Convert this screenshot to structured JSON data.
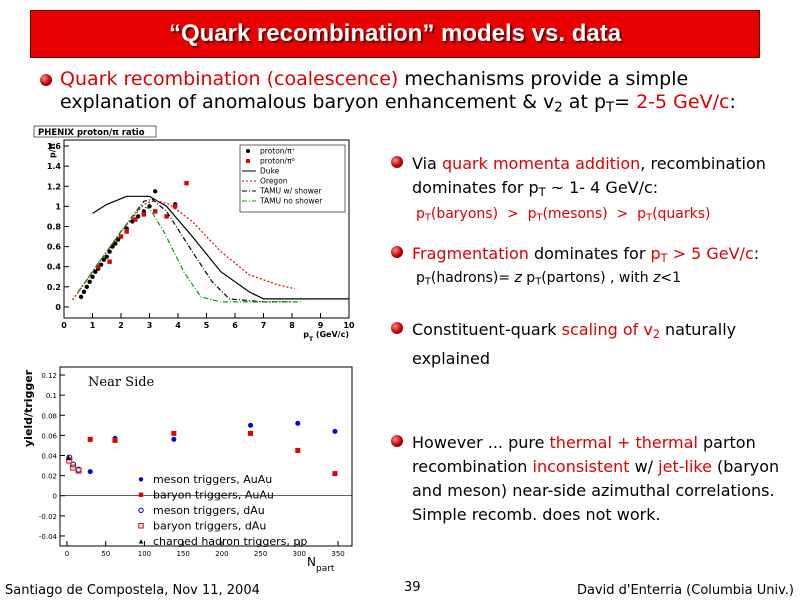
{
  "title": "“Quark recombination” models vs. data",
  "intro": [
    {
      "text": "Quark recombination (coalescence)",
      "color": "#e00000"
    },
    {
      "text": " mechanisms provide a simple explanation of anomalous baryon enhancement & v"
    },
    {
      "text": "2",
      "sub": true
    },
    {
      "text": " at p"
    },
    {
      "text": "T",
      "sub": true
    },
    {
      "text": "= "
    },
    {
      "text": "2-5 GeV/c",
      "color": "#e00000"
    },
    {
      "text": ":"
    }
  ],
  "bullets": [
    {
      "text": [
        {
          "text": "Via "
        },
        {
          "text": "quark momenta addition",
          "color": "#e00000"
        },
        {
          "text": ", recombination dominates for p"
        },
        {
          "text": "T",
          "sub": true
        },
        {
          "text": " ~ 1- 4 GeV/c:"
        }
      ],
      "detail": [
        {
          "text": "p",
          "color": "#e00000"
        },
        {
          "text": "T",
          "sub": true,
          "color": "#e00000"
        },
        {
          "text": "(baryons)  >  p",
          "color": "#e00000"
        },
        {
          "text": "T",
          "sub": true,
          "color": "#e00000"
        },
        {
          "text": "(mesons)  >  p",
          "color": "#e00000"
        },
        {
          "text": "T",
          "sub": true,
          "color": "#e00000"
        },
        {
          "text": "(quarks)",
          "color": "#e00000"
        }
      ]
    },
    {
      "text": [
        {
          "text": "Fragmentation",
          "color": "#e00000"
        },
        {
          "text": " dominates for "
        },
        {
          "text": "p",
          "color": "#e00000"
        },
        {
          "text": "T",
          "sub": true,
          "color": "#e00000"
        },
        {
          "text": " > 5 GeV/c",
          "color": "#e00000"
        },
        {
          "text": ":"
        }
      ],
      "detail": [
        {
          "text": "p"
        },
        {
          "text": "T",
          "sub": true
        },
        {
          "text": "(hadrons)= "
        },
        {
          "text": "z",
          "italic": true
        },
        {
          "text": " p"
        },
        {
          "text": "T",
          "sub": true
        },
        {
          "text": "(partons) , with "
        },
        {
          "text": "z",
          "italic": true
        },
        {
          "text": "<1"
        }
      ]
    },
    {
      "text": [
        {
          "text": "Constituent-quark "
        },
        {
          "text": "scaling of v",
          "color": "#e00000"
        },
        {
          "text": "2",
          "sub": true,
          "color": "#e00000"
        },
        {
          "text": " naturally explained"
        }
      ]
    },
    {
      "text": [
        {
          "text": "However ... pure "
        },
        {
          "text": "thermal + thermal",
          "color": "#e00000"
        },
        {
          "text": " parton recombination "
        },
        {
          "text": "inconsistent",
          "color": "#e00000"
        },
        {
          "text": " w/ "
        },
        {
          "text": "jet-like",
          "color": "#e00000"
        },
        {
          "text": " (baryon and meson) near-side azimuthal correlations. Simple recomb. does not work."
        }
      ]
    }
  ],
  "footer": {
    "left": "Santiago de Compostela, Nov 11, 2004",
    "page": "39",
    "right": "David d'Enterria (Columbia Univ.)"
  },
  "chart_data": [
    {
      "type": "scatter",
      "title": "PHENIX proton/π ratio",
      "ylabel": "p/π",
      "xlabel": [
        {
          "text": "p"
        },
        {
          "text": "T",
          "sub": true
        },
        {
          "text": " (GeV/c)"
        }
      ],
      "xlim": [
        0,
        10
      ],
      "xticks": [
        0,
        1,
        2,
        3,
        4,
        5,
        6,
        7,
        8,
        9,
        10
      ],
      "ylim": [
        -0.11,
        1.66
      ],
      "yticks": [
        0,
        0.2,
        0.4,
        0.6,
        0.8,
        1,
        1.2,
        1.4,
        1.6
      ],
      "grid": false,
      "legend": "upper right",
      "series": [
        {
          "name": "proton/π⁺",
          "color": "#000000",
          "marker": "circle",
          "x": [
            0.6,
            0.7,
            0.8,
            0.9,
            1.0,
            1.1,
            1.2,
            1.3,
            1.4,
            1.5,
            1.6,
            1.7,
            1.8,
            1.9,
            2.0,
            2.2,
            2.4,
            2.6,
            2.8,
            3.0,
            3.2,
            3.6,
            3.9
          ],
          "values": [
            0.1,
            0.15,
            0.2,
            0.25,
            0.3,
            0.35,
            0.38,
            0.42,
            0.47,
            0.5,
            0.55,
            0.6,
            0.63,
            0.67,
            0.7,
            0.78,
            0.85,
            0.9,
            0.95,
            1.0,
            1.15,
            0.9,
            1.02
          ]
        },
        {
          "name": "proton/π⁰",
          "color": "#e00000",
          "marker": "square",
          "x": [
            1.2,
            1.6,
            2.0,
            2.2,
            2.5,
            2.8,
            3.2,
            3.6,
            3.9,
            4.3
          ],
          "values": [
            0.4,
            0.45,
            0.7,
            0.75,
            0.87,
            0.92,
            0.95,
            0.9,
            1.0,
            1.23
          ]
        },
        {
          "name": "Duke",
          "color": "#000000",
          "dash": "solid",
          "x": [
            1,
            1.5,
            2.2,
            3,
            3.6,
            4.5,
            5.5,
            6.5,
            7,
            8,
            10
          ],
          "values": [
            0.93,
            1.02,
            1.1,
            1.1,
            1.0,
            0.7,
            0.35,
            0.15,
            0.08,
            0.08,
            0.08
          ]
        },
        {
          "name": "Oregon",
          "color": "#e00000",
          "dash": "dotted",
          "x": [
            0.3,
            1,
            2,
            2.8,
            3.2,
            3.7,
            4.5,
            5.5,
            6.5,
            7.5,
            8.1
          ],
          "values": [
            0.07,
            0.35,
            0.75,
            1.02,
            1.06,
            1.02,
            0.85,
            0.55,
            0.32,
            0.22,
            0.18
          ]
        },
        {
          "name": "TAMU w/ shower",
          "color": "#000000",
          "dash": "dashdot",
          "x": [
            0.5,
            1,
            2,
            2.8,
            3.1,
            3.6,
            4.5,
            5.2,
            5.8,
            7,
            8
          ],
          "values": [
            0.15,
            0.35,
            0.75,
            1.05,
            1.07,
            0.95,
            0.55,
            0.25,
            0.08,
            0.05,
            0.05
          ]
        },
        {
          "name": "TAMU no shower",
          "color": "#00a000",
          "dash": "dashdot",
          "x": [
            0.5,
            1,
            2,
            2.7,
            3,
            3.5,
            4.2,
            4.8,
            5.5,
            8.3
          ],
          "values": [
            0.15,
            0.35,
            0.75,
            1.0,
            0.98,
            0.75,
            0.35,
            0.1,
            0.05,
            0.05
          ]
        }
      ]
    },
    {
      "type": "scatter",
      "annotation": "Near Side",
      "ylabel": "yield/trigger",
      "xlabel": [
        {
          "text": "N"
        },
        {
          "text": "part",
          "sub": true
        }
      ],
      "xlim": [
        -9,
        368
      ],
      "xticks": [
        0,
        50,
        100,
        150,
        200,
        250,
        300,
        350
      ],
      "ylim": [
        -0.05,
        0.128
      ],
      "yticks": [
        -0.04,
        -0.02,
        0,
        0.02,
        0.04,
        0.06,
        0.08,
        0.1,
        0.12
      ],
      "grid": false,
      "legend": "lower center",
      "series": [
        {
          "name": "meson triggers, AuAu",
          "color": "#0000e0",
          "marker": "circle",
          "x": [
            30,
            62,
            138,
            237,
            298,
            346
          ],
          "values": [
            0.024,
            0.057,
            0.056,
            0.07,
            0.072,
            0.064
          ]
        },
        {
          "name": "baryon triggers, AuAu",
          "color": "#e00000",
          "marker": "square",
          "x": [
            30,
            62,
            138,
            237,
            298,
            346
          ],
          "values": [
            0.056,
            0.055,
            0.062,
            0.062,
            0.045,
            0.022
          ]
        },
        {
          "name": "meson triggers, dAu",
          "color": "#0000e0",
          "marker": "open-circle",
          "x": [
            3,
            8,
            15
          ],
          "values": [
            0.038,
            0.031,
            0.026
          ]
        },
        {
          "name": "baryon triggers, dAu",
          "color": "#e00000",
          "marker": "open-square",
          "x": [
            3,
            8,
            15
          ],
          "values": [
            0.035,
            0.028,
            0.025
          ]
        },
        {
          "name": "charged hadron triggers, pp",
          "color": "#000000",
          "marker": "triangle",
          "x": [
            2
          ],
          "values": [
            0.038
          ]
        }
      ]
    }
  ]
}
